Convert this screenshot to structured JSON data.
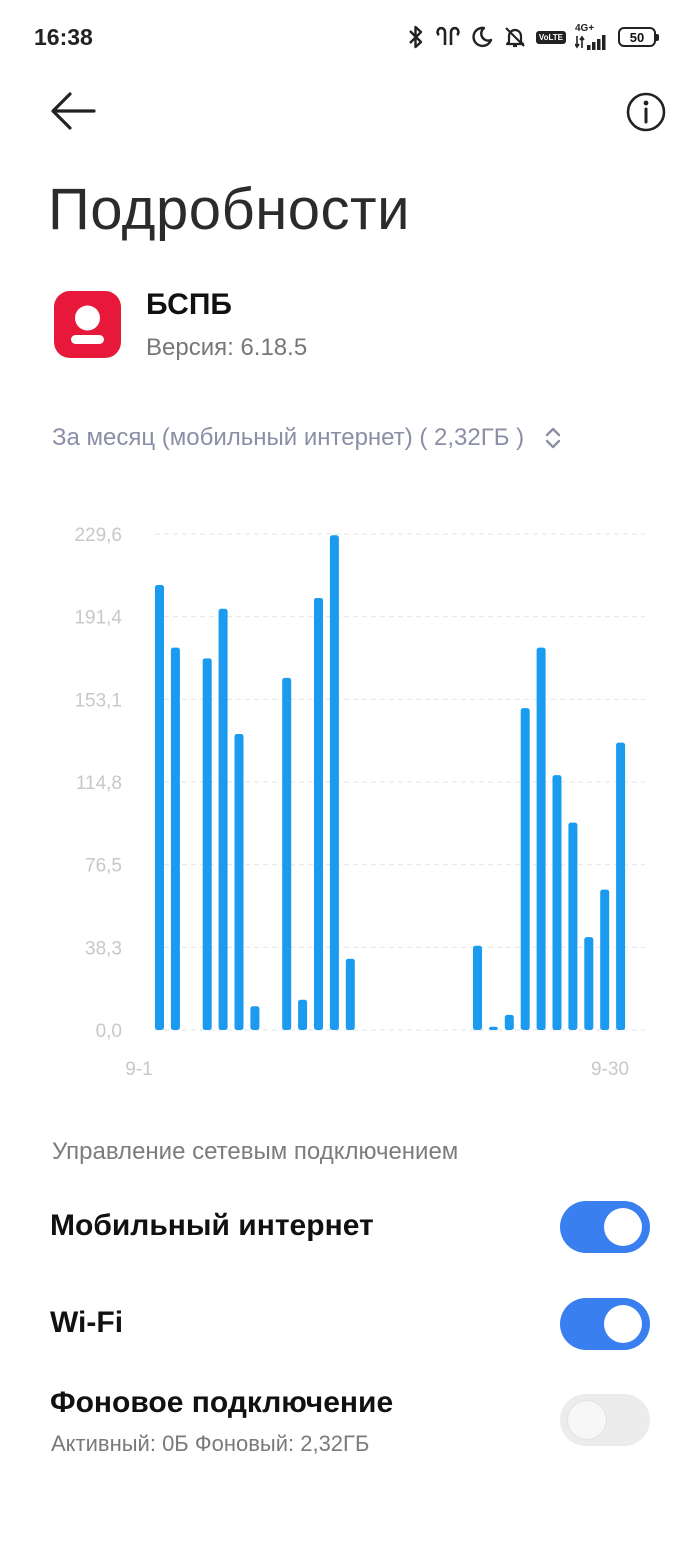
{
  "status_bar": {
    "time": "16:38",
    "icons": [
      "bluetooth-icon",
      "earbuds-icon",
      "moon-icon",
      "bell-off-icon",
      "volte-icon",
      "signal-icon",
      "battery-icon"
    ],
    "volte_top": "Vo",
    "volte_bottom": "LTE",
    "network": "4G+",
    "battery": "50"
  },
  "header": {
    "title": "Подробности"
  },
  "app": {
    "name": "БСПБ",
    "version": "Версия: 6.18.5",
    "icon_color": "#e8183a"
  },
  "period_selector": {
    "label": "За месяц (мобильный интернет) ( 2,32ГБ )"
  },
  "chart_data": {
    "type": "bar",
    "y_ticks": [
      "229,6",
      "191,4",
      "153,1",
      "114,8",
      "76,5",
      "38,3",
      "0,0"
    ],
    "ylim": [
      0,
      229.6
    ],
    "x_start_label": "9-1",
    "x_end_label": "9-30",
    "categories": [
      "1",
      "2",
      "3",
      "4",
      "5",
      "6",
      "7",
      "8",
      "9",
      "10",
      "11",
      "12",
      "13",
      "14",
      "15",
      "16",
      "17",
      "18",
      "19",
      "20",
      "21",
      "22",
      "23",
      "24",
      "25",
      "26",
      "27",
      "28",
      "29",
      "30"
    ],
    "values": [
      206,
      177,
      0,
      172,
      195,
      137,
      11,
      0,
      163,
      14,
      200,
      229,
      33,
      0,
      0,
      0,
      0,
      0,
      0,
      0,
      39,
      1.5,
      7,
      149,
      177,
      118,
      96,
      43,
      65,
      133
    ],
    "bar_color": "#1a9bf0",
    "grid": true
  },
  "network_section": {
    "label": "Управление сетевым подключением",
    "rows": [
      {
        "title": "Мобильный интернет",
        "enabled": true
      },
      {
        "title": "Wi-Fi",
        "enabled": true
      },
      {
        "title": "Фоновое подключение",
        "subtitle": "Активный: 0Б  Фоновый: 2,32ГБ",
        "enabled": false
      }
    ]
  },
  "colors": {
    "accent": "#3a7ff0",
    "toggle_off": "#ececec"
  }
}
